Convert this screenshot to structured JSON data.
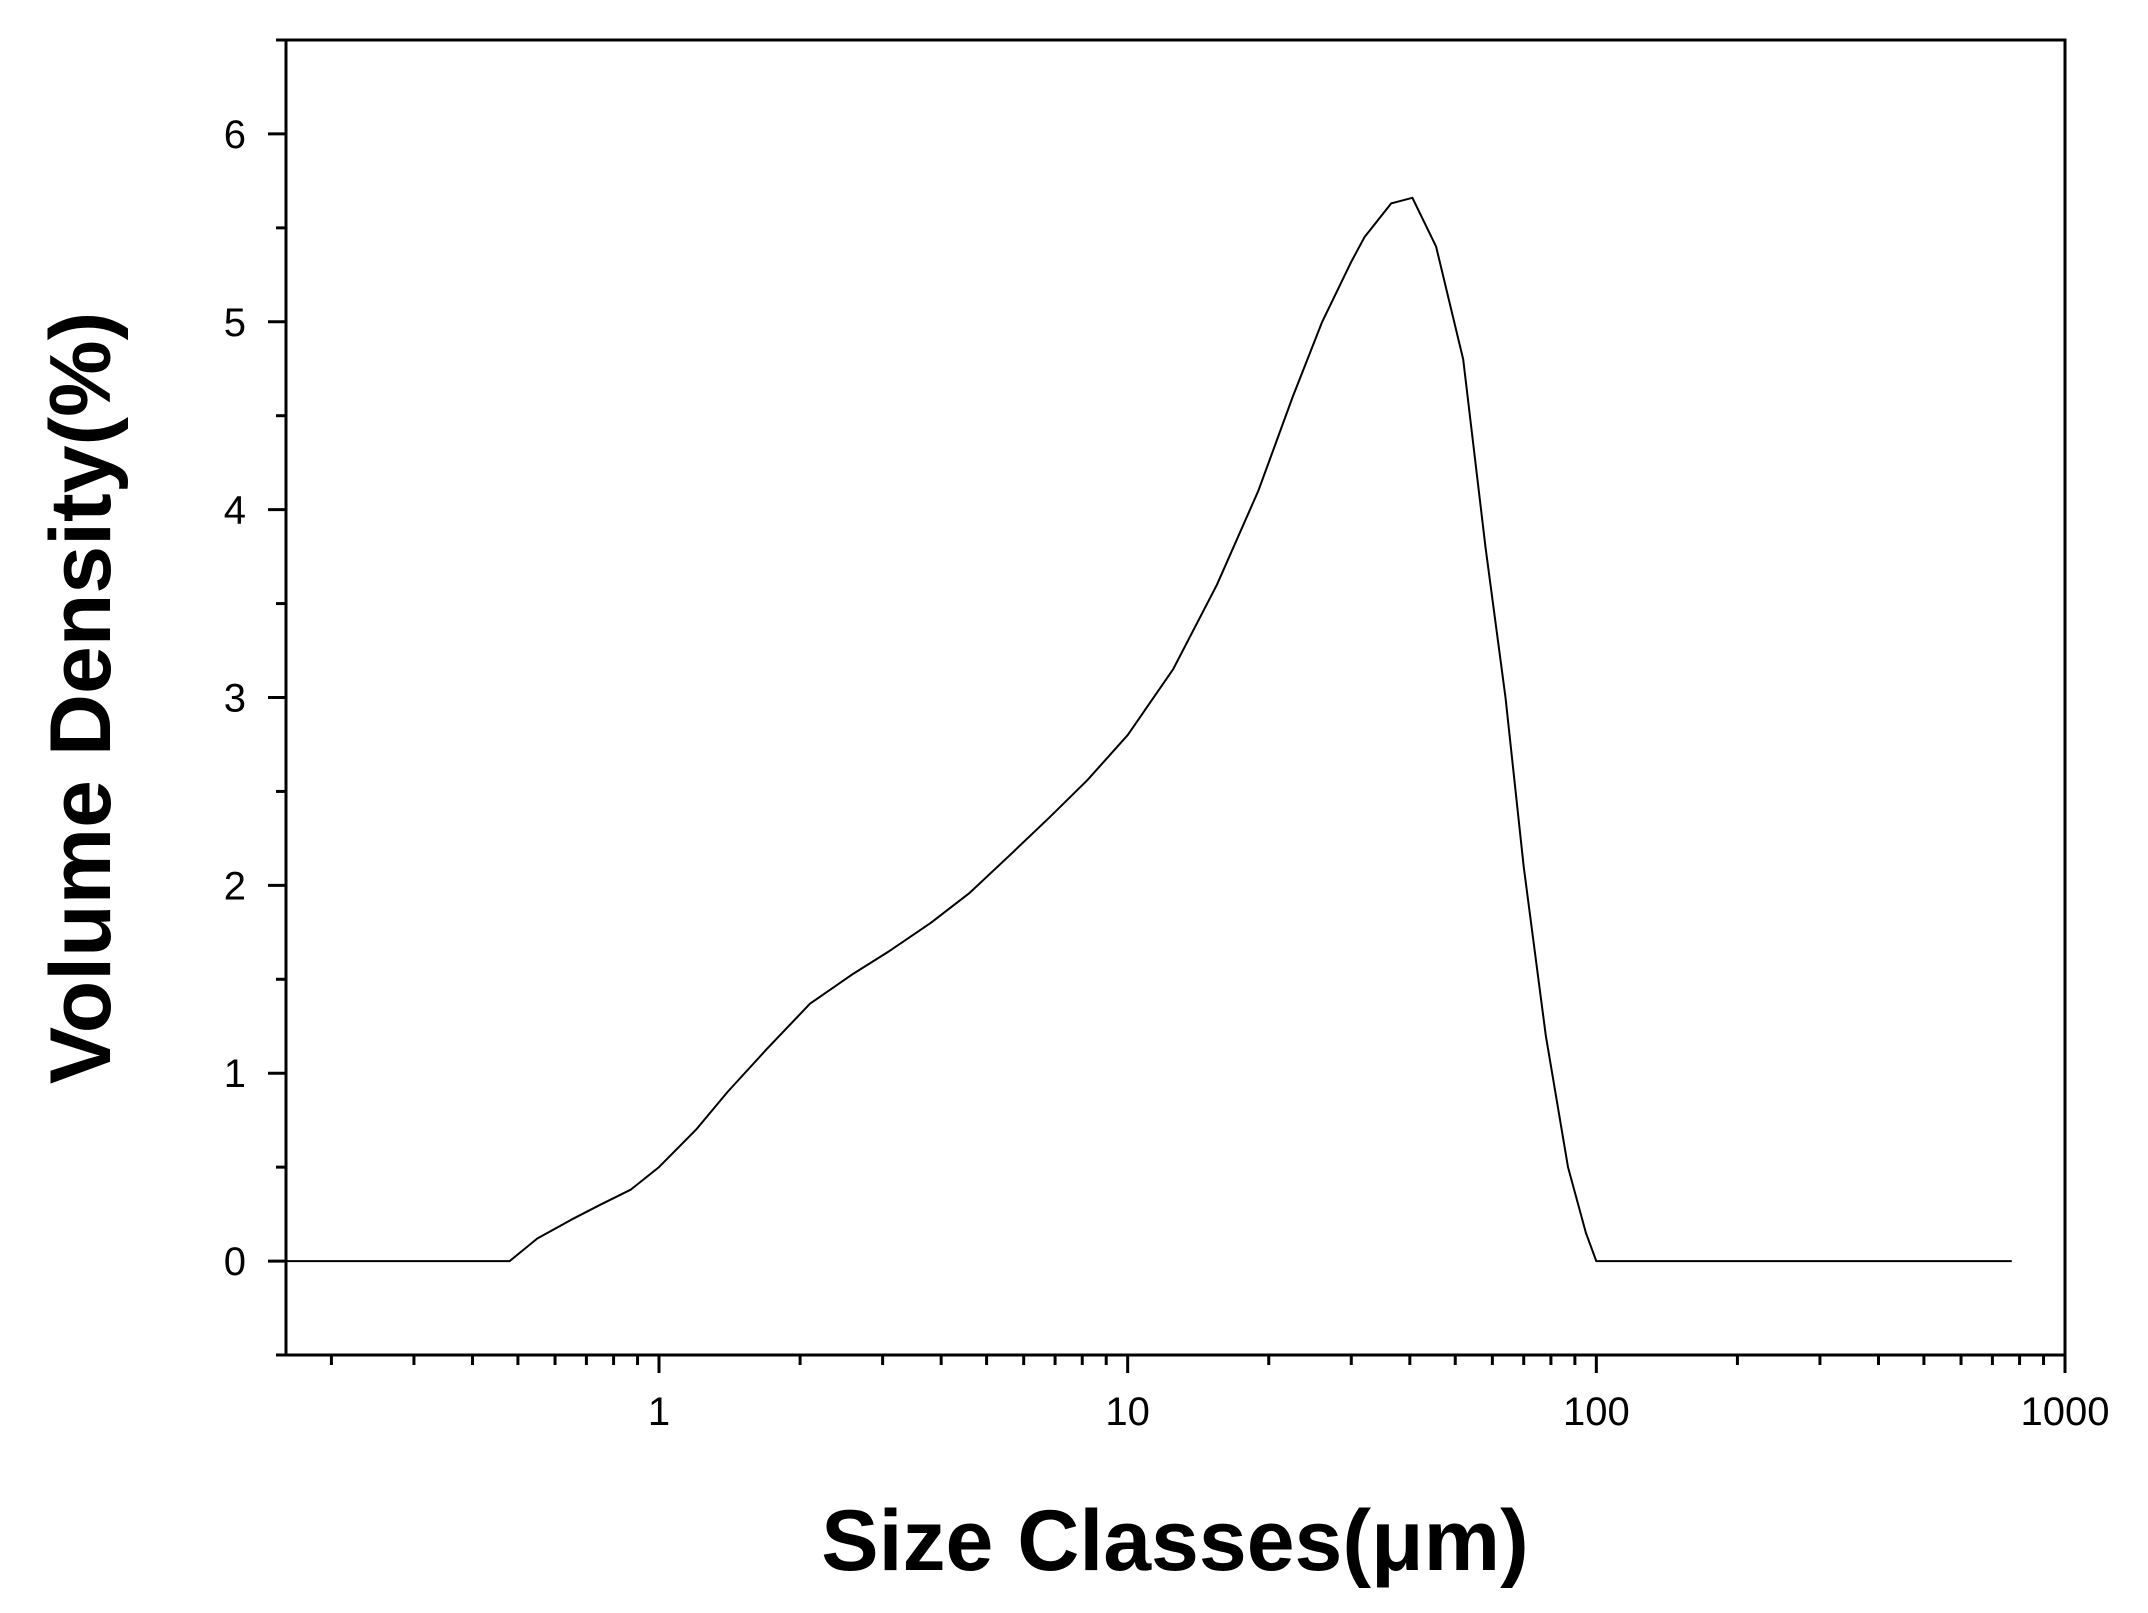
{
  "chart_data": {
    "type": "line",
    "title": "",
    "xlabel": "Size Classes(μm)",
    "ylabel": "Volume Density(%)",
    "x_scale": "log",
    "xlim": [
      0.16,
      1000
    ],
    "ylim": [
      -0.5,
      6.5
    ],
    "x_ticks": [
      1,
      10,
      100,
      1000
    ],
    "x_tick_labels": [
      "1",
      "10",
      "100",
      "1000"
    ],
    "y_ticks": [
      0,
      1,
      2,
      3,
      4,
      5,
      6
    ],
    "y_tick_labels": [
      "0",
      "1",
      "2",
      "3",
      "4",
      "5",
      "6"
    ],
    "grid": false,
    "legend": "none",
    "line_color": "#000000",
    "series": [
      {
        "x": [
          0.16,
          0.2,
          0.3,
          0.4,
          0.48,
          0.55,
          0.65,
          0.75,
          0.87,
          1.0,
          1.2,
          1.4,
          1.7,
          2.1,
          2.6,
          3.1,
          3.8,
          4.6,
          5.6,
          6.8,
          8.2,
          10,
          12.5,
          15.5,
          19,
          22.5,
          26,
          30,
          32,
          36.5,
          40.5,
          45.5,
          52,
          58,
          64,
          70,
          78,
          87,
          95,
          100,
          200,
          500,
          770
        ],
        "y": [
          0,
          0,
          0,
          0,
          0,
          0.12,
          0.22,
          0.3,
          0.38,
          0.5,
          0.7,
          0.9,
          1.13,
          1.37,
          1.53,
          1.65,
          1.8,
          1.96,
          2.16,
          2.36,
          2.56,
          2.8,
          3.15,
          3.6,
          4.1,
          4.6,
          5.0,
          5.32,
          5.45,
          5.63,
          5.66,
          5.4,
          4.8,
          3.8,
          3.0,
          2.1,
          1.2,
          0.5,
          0.15,
          0,
          0,
          0,
          0
        ]
      }
    ]
  }
}
